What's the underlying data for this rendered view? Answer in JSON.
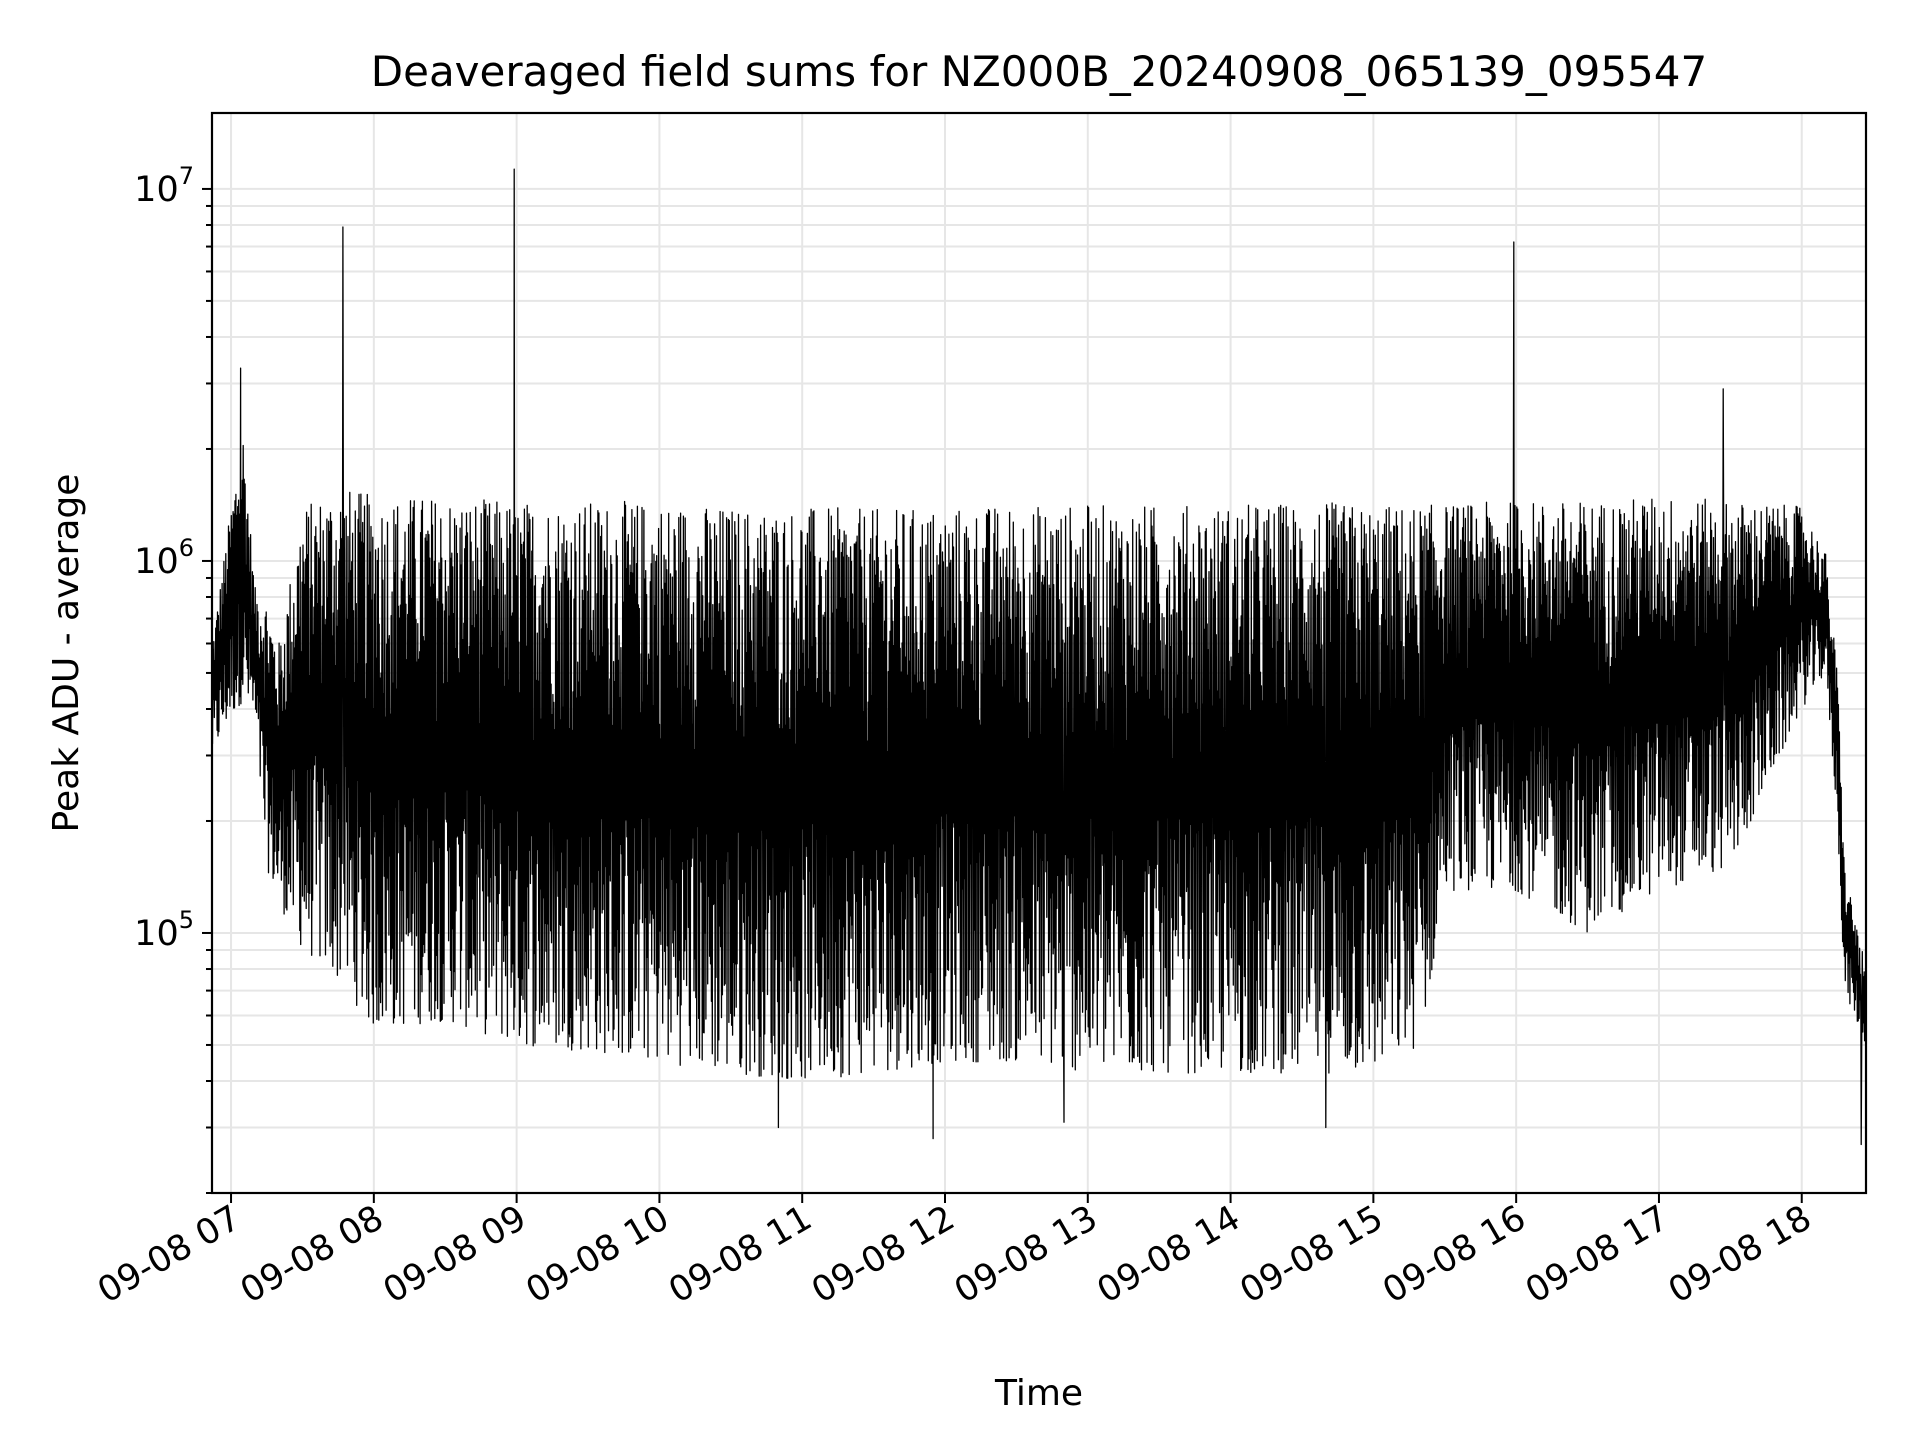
{
  "chart_data": {
    "type": "line",
    "title": "Deaveraged field sums for NZ000B_20240908_065139_095547",
    "xlabel": "Time",
    "ylabel": "Peak ADU - average",
    "x_tick_labels": [
      "09-08 07",
      "09-08 08",
      "09-08 09",
      "09-08 10",
      "09-08 11",
      "09-08 12",
      "09-08 13",
      "09-08 14",
      "09-08 15",
      "09-08 16",
      "09-08 17",
      "09-08 18"
    ],
    "x_tick_times": [
      "2024-09-08 07:00",
      "2024-09-08 08:00",
      "2024-09-08 09:00",
      "2024-09-08 10:00",
      "2024-09-08 11:00",
      "2024-09-08 12:00",
      "2024-09-08 13:00",
      "2024-09-08 14:00",
      "2024-09-08 15:00",
      "2024-09-08 16:00",
      "2024-09-08 17:00",
      "2024-09-08 18:00"
    ],
    "xlim": [
      "2024-09-08 06:52",
      "2024-09-08 18:27"
    ],
    "y_scale": "log",
    "ylim": [
      20000,
      16000000
    ],
    "y_tick_labels": [
      {
        "base": "10",
        "exp": "5",
        "value": 100000
      },
      {
        "base": "10",
        "exp": "6",
        "value": 1000000
      },
      {
        "base": "10",
        "exp": "7",
        "value": 10000000
      }
    ],
    "grid": true,
    "line_color": "#000000",
    "grid_color": "#e6e6e6",
    "series": [
      {
        "envelope": [
          {
            "x": "2024-09-08 06:52",
            "low": 300000,
            "high": 600000
          },
          {
            "x": "2024-09-08 07:00",
            "low": 380000,
            "high": 1400000
          },
          {
            "x": "2024-09-08 07:05",
            "low": 420000,
            "high": 2300000
          },
          {
            "x": "2024-09-08 07:10",
            "low": 360000,
            "high": 850000
          },
          {
            "x": "2024-09-08 07:15",
            "low": 150000,
            "high": 800000
          },
          {
            "x": "2024-09-08 07:20",
            "low": 120000,
            "high": 600000
          },
          {
            "x": "2024-09-08 07:30",
            "low": 90000,
            "high": 1400000
          },
          {
            "x": "2024-09-08 07:45",
            "low": 75000,
            "high": 1600000
          },
          {
            "x": "2024-09-08 08:00",
            "low": 55000,
            "high": 1500000
          },
          {
            "x": "2024-09-08 08:30",
            "low": 58000,
            "high": 1500000
          },
          {
            "x": "2024-09-08 09:00",
            "low": 50000,
            "high": 1450000
          },
          {
            "x": "2024-09-08 09:30",
            "low": 48000,
            "high": 1450000
          },
          {
            "x": "2024-09-08 10:00",
            "low": 45000,
            "high": 1450000
          },
          {
            "x": "2024-09-08 10:30",
            "low": 42000,
            "high": 1400000
          },
          {
            "x": "2024-09-08 11:00",
            "low": 40000,
            "high": 1400000
          },
          {
            "x": "2024-09-08 11:30",
            "low": 42000,
            "high": 1380000
          },
          {
            "x": "2024-09-08 12:00",
            "low": 45000,
            "high": 1400000
          },
          {
            "x": "2024-09-08 12:30",
            "low": 45000,
            "high": 1420000
          },
          {
            "x": "2024-09-08 13:00",
            "low": 42000,
            "high": 1420000
          },
          {
            "x": "2024-09-08 13:30",
            "low": 42000,
            "high": 1420000
          },
          {
            "x": "2024-09-08 14:00",
            "low": 42000,
            "high": 1420000
          },
          {
            "x": "2024-09-08 14:30",
            "low": 42000,
            "high": 1450000
          },
          {
            "x": "2024-09-08 15:00",
            "low": 42000,
            "high": 1420000
          },
          {
            "x": "2024-09-08 15:20",
            "low": 50000,
            "high": 1420000
          },
          {
            "x": "2024-09-08 15:30",
            "low": 130000,
            "high": 1420000
          },
          {
            "x": "2024-09-08 16:00",
            "low": 130000,
            "high": 1450000
          },
          {
            "x": "2024-09-08 16:30",
            "low": 100000,
            "high": 1450000
          },
          {
            "x": "2024-09-08 17:00",
            "low": 130000,
            "high": 1500000
          },
          {
            "x": "2024-09-08 17:30",
            "low": 150000,
            "high": 1450000
          },
          {
            "x": "2024-09-08 18:00",
            "low": 400000,
            "high": 1400000
          },
          {
            "x": "2024-09-08 18:10",
            "low": 500000,
            "high": 1050000
          },
          {
            "x": "2024-09-08 18:15",
            "low": 200000,
            "high": 500000
          },
          {
            "x": "2024-09-08 18:18",
            "low": 70000,
            "high": 150000
          },
          {
            "x": "2024-09-08 18:27",
            "low": 50000,
            "high": 80000
          }
        ],
        "spikes": [
          {
            "x": "2024-09-08 07:04",
            "y": 3300000
          },
          {
            "x": "2024-09-08 07:47",
            "y": 7900000
          },
          {
            "x": "2024-09-08 08:59",
            "y": 11300000
          },
          {
            "x": "2024-09-08 15:59",
            "y": 7200000
          },
          {
            "x": "2024-09-08 17:27",
            "y": 2900000
          },
          {
            "x": "2024-09-08 11:55",
            "y": 28000
          },
          {
            "x": "2024-09-08 10:50",
            "y": 30000
          },
          {
            "x": "2024-09-08 14:40",
            "y": 30000
          },
          {
            "x": "2024-09-08 12:50",
            "y": 31000
          },
          {
            "x": "2024-09-08 18:25",
            "y": 27000
          }
        ]
      }
    ]
  }
}
